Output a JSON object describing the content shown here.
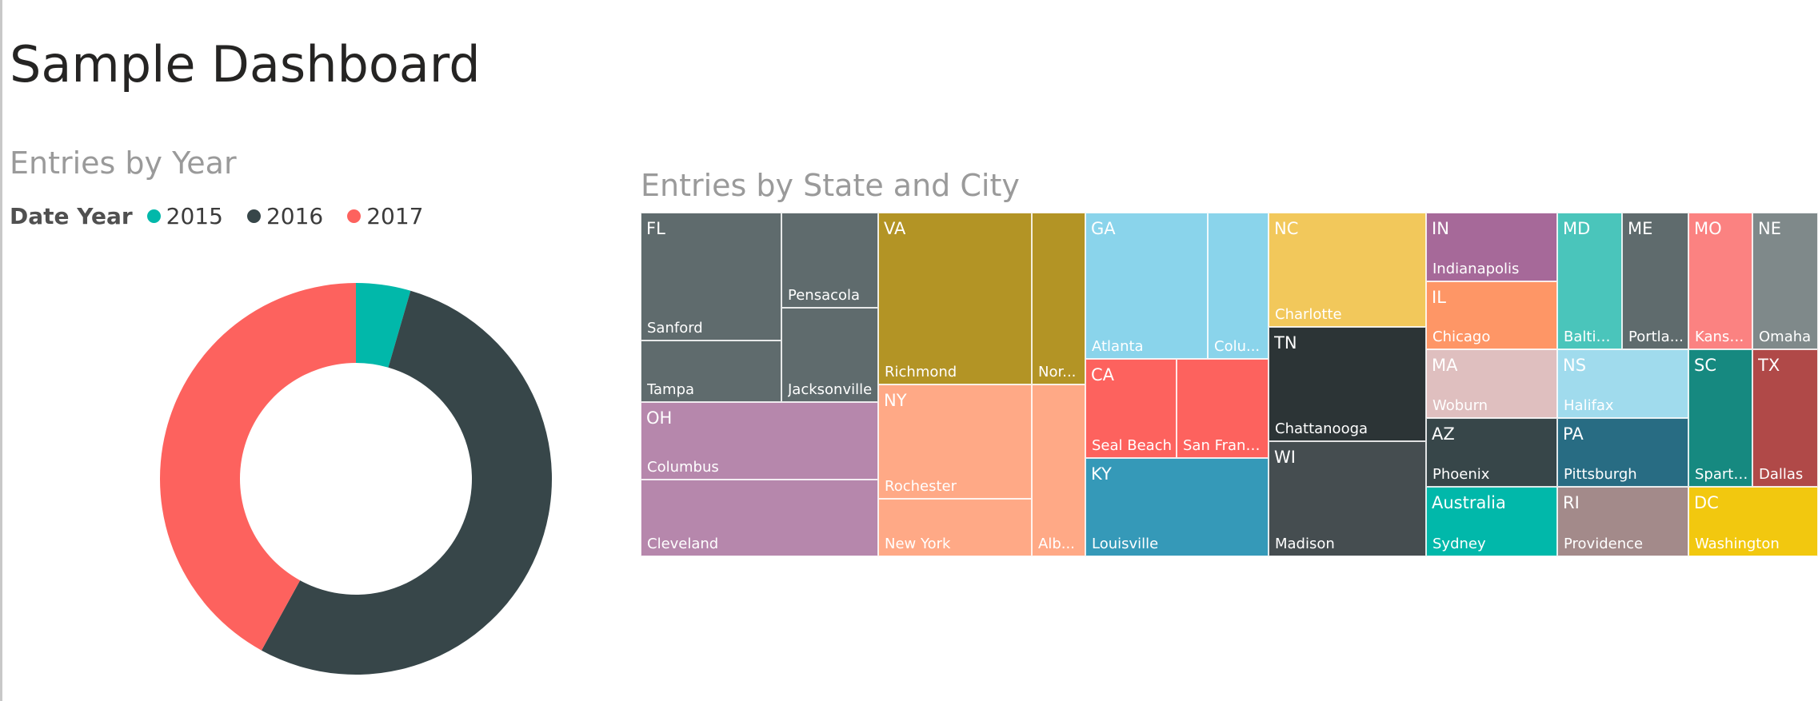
{
  "page": {
    "title": "Sample Dashboard"
  },
  "donut_chart": {
    "title": "Entries by Year",
    "legend_title": "Date Year",
    "legend": [
      {
        "label": "2015",
        "color": "#01B8AA"
      },
      {
        "label": "2016",
        "color": "#374649"
      },
      {
        "label": "2017",
        "color": "#FD625E"
      }
    ]
  },
  "treemap_chart": {
    "title": "Entries by State and City"
  },
  "chart_data": [
    {
      "type": "pie",
      "title": "Entries by Year",
      "legend_title": "Date Year",
      "legend_position": "top-left",
      "donut": true,
      "categories": [
        "2015",
        "2016",
        "2017"
      ],
      "values": [
        4.5,
        53.5,
        42.0
      ],
      "colors": [
        "#01B8AA",
        "#374649",
        "#FD625E"
      ]
    },
    {
      "type": "treemap",
      "title": "Entries by State and City",
      "groups": [
        {
          "state": "FL",
          "color": "#5F6B6D",
          "cities": [
            "Sanford",
            "Tampa",
            "Pensacola",
            "Jacksonville"
          ]
        },
        {
          "state": "OH",
          "color": "#B687AC",
          "cities": [
            "Columbus",
            "Cleveland"
          ]
        },
        {
          "state": "VA",
          "color": "#B39425",
          "cities": [
            "Richmond",
            "Nor..."
          ]
        },
        {
          "state": "NY",
          "color": "#FFA986",
          "cities": [
            "Rochester",
            "New York",
            "Alb..."
          ]
        },
        {
          "state": "GA",
          "color": "#8AD4EB",
          "cities": [
            "Atlanta",
            "Colu..."
          ]
        },
        {
          "state": "CA",
          "color": "#FD625E",
          "cities": [
            "Seal Beach",
            "San Franci..."
          ]
        },
        {
          "state": "KY",
          "color": "#3599B8",
          "cities": [
            "Louisville"
          ]
        },
        {
          "state": "NC",
          "color": "#F2C85B",
          "cities": [
            "Charlotte"
          ]
        },
        {
          "state": "TN",
          "color": "#2C3436",
          "cities": [
            "Chattanooga"
          ]
        },
        {
          "state": "WI",
          "color": "#454D50",
          "cities": [
            "Madison"
          ]
        },
        {
          "state": "IN",
          "color": "#A66999",
          "cities": [
            "Indianapolis"
          ]
        },
        {
          "state": "IL",
          "color": "#FE9666",
          "cities": [
            "Chicago"
          ]
        },
        {
          "state": "MA",
          "color": "#DFBFBF",
          "cities": [
            "Woburn"
          ]
        },
        {
          "state": "AZ",
          "color": "#374649",
          "cities": [
            "Phoenix"
          ]
        },
        {
          "state": "Australia",
          "color": "#01B8AA",
          "cities": [
            "Sydney"
          ]
        },
        {
          "state": "MD",
          "color": "#4AC5BB",
          "cities": [
            "Baltim..."
          ]
        },
        {
          "state": "ME",
          "color": "#5F6B6D",
          "cities": [
            "Portla..."
          ]
        },
        {
          "state": "NS",
          "color": "#A0DBED",
          "cities": [
            "Halifax"
          ]
        },
        {
          "state": "PA",
          "color": "#286C83",
          "cities": [
            "Pittsburgh"
          ]
        },
        {
          "state": "RI",
          "color": "#A38A8A",
          "cities": [
            "Providence"
          ]
        },
        {
          "state": "MO",
          "color": "#FB8281",
          "cities": [
            "Kansa..."
          ]
        },
        {
          "state": "NE",
          "color": "#7F898A",
          "cities": [
            "Omaha"
          ]
        },
        {
          "state": "SC",
          "color": "#168980",
          "cities": [
            "Sparta..."
          ]
        },
        {
          "state": "TX",
          "color": "#B04948",
          "cities": [
            "Dallas"
          ]
        },
        {
          "state": "DC",
          "color": "#F2C80F",
          "cities": [
            "Washington"
          ]
        }
      ]
    }
  ]
}
